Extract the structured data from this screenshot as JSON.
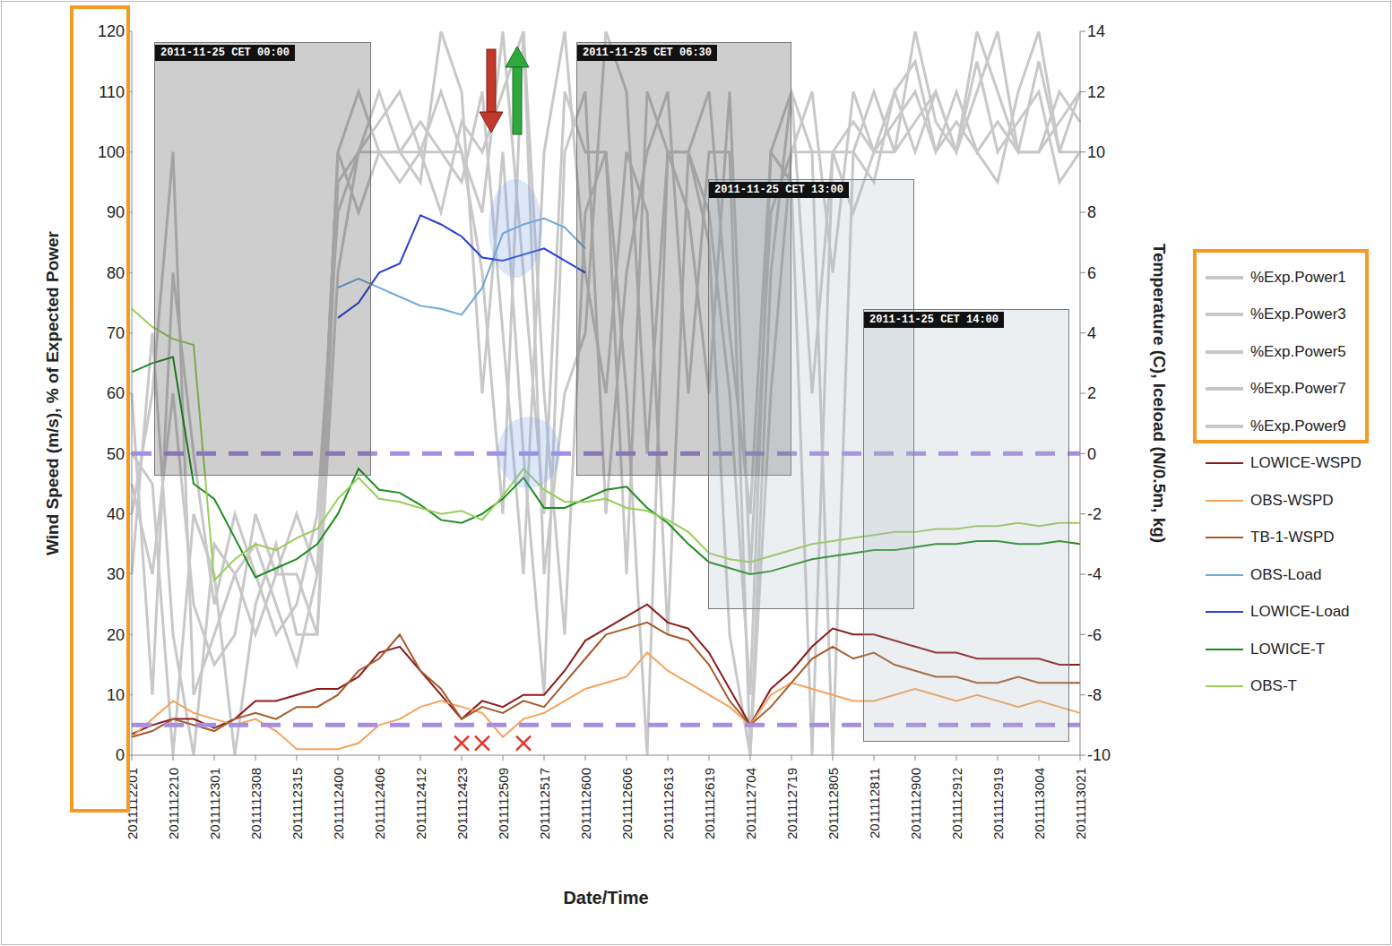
{
  "chart_data": {
    "type": "line",
    "x_label": "Date/Time",
    "y_label": "Wind Speed (m/s), % of Expected Power",
    "y2_label": "Temperature (C), Iceload (N/0.5m, kg)",
    "categories": [
      "2011112201",
      null,
      "2011112210",
      null,
      "2011112301",
      null,
      "2011112308",
      null,
      "2011112315",
      null,
      "2011112400",
      null,
      "2011112406",
      null,
      "2011112412",
      null,
      "2011112423",
      null,
      "2011112509",
      null,
      "2011112517",
      null,
      "2011112600",
      null,
      "2011112606",
      null,
      "2011112613",
      null,
      "2011112619",
      null,
      "2011112704",
      null,
      "2011112719",
      null,
      "2011112805",
      null,
      "2011112811",
      null,
      "2011112900",
      null,
      "2011112912",
      null,
      "2011112919",
      null,
      "2011113004",
      null,
      "2011113021"
    ],
    "ylim": [
      0,
      120
    ],
    "yticks": [
      0,
      10,
      20,
      30,
      40,
      50,
      60,
      70,
      80,
      90,
      100,
      110,
      120
    ],
    "y2lim": [
      -10,
      14
    ],
    "y2ticks": [
      -10,
      -8,
      -6,
      -4,
      -2,
      0,
      2,
      4,
      6,
      8,
      10,
      12,
      14
    ],
    "grid": false,
    "legend": "right",
    "series": [
      {
        "name": "%Exp.Power1",
        "color": "#c8c8c8",
        "values": [
          50,
          45,
          0,
          40,
          30,
          0,
          25,
          35,
          20,
          20,
          80,
          100,
          100,
          95,
          100,
          110,
          100,
          80,
          40,
          120,
          60,
          20,
          90,
          100,
          60,
          0,
          100,
          100,
          85,
          20,
          0,
          60,
          100,
          100,
          0,
          100,
          110,
          100,
          120,
          105,
          100,
          110,
          120,
          100,
          100,
          110,
          105
        ]
      },
      {
        "name": "%Exp.Power3",
        "color": "#c8c8c8",
        "values": [
          40,
          60,
          100,
          10,
          20,
          30,
          35,
          25,
          15,
          30,
          100,
          90,
          100,
          100,
          105,
          100,
          95,
          110,
          70,
          30,
          100,
          120,
          80,
          60,
          100,
          90,
          20,
          100,
          110,
          70,
          40,
          100,
          95,
          0,
          100,
          105,
          100,
          110,
          115,
          100,
          105,
          100,
          95,
          110,
          120,
          100,
          110
        ]
      },
      {
        "name": "%Exp.Power5",
        "color": "#c8c8c8",
        "values": [
          60,
          10,
          80,
          50,
          25,
          40,
          30,
          20,
          25,
          40,
          90,
          100,
          110,
          100,
          95,
          120,
          110,
          60,
          100,
          50,
          10,
          100,
          110,
          40,
          80,
          100,
          110,
          60,
          100,
          100,
          0,
          80,
          110,
          60,
          100,
          100,
          95,
          110,
          100,
          110,
          100,
          115,
          100,
          105,
          110,
          95,
          100
        ]
      },
      {
        "name": "%Exp.Power7",
        "color": "#c8c8c8",
        "values": [
          30,
          70,
          20,
          0,
          35,
          30,
          20,
          30,
          40,
          30,
          100,
          110,
          100,
          100,
          100,
          90,
          105,
          100,
          110,
          120,
          30,
          60,
          70,
          120,
          110,
          50,
          100,
          90,
          60,
          110,
          30,
          90,
          100,
          110,
          80,
          110,
          100,
          100,
          105,
          110,
          100,
          120,
          110,
          100,
          100,
          105,
          110
        ]
      },
      {
        "name": "%Exp.Power9",
        "color": "#c8c8c8",
        "values": [
          45,
          30,
          60,
          25,
          15,
          20,
          40,
          30,
          30,
          20,
          95,
          100,
          105,
          110,
          100,
          100,
          100,
          90,
          120,
          80,
          40,
          110,
          100,
          100,
          30,
          110,
          100,
          100,
          90,
          60,
          10,
          100,
          110,
          100,
          100,
          90,
          100,
          105,
          110,
          100,
          110,
          100,
          105,
          100,
          115,
          100,
          100
        ]
      },
      {
        "name": "LOWICE-WSPD",
        "color": "#8b1a1a",
        "values": [
          3.5,
          5,
          6,
          6,
          4.5,
          6,
          9,
          9,
          10,
          11,
          11,
          13,
          17,
          18,
          14,
          10,
          6,
          9,
          8,
          10,
          10,
          14,
          19,
          21,
          23,
          25,
          22,
          21,
          17,
          11,
          5,
          11,
          14,
          18,
          21,
          20,
          20,
          19,
          18,
          17,
          17,
          16,
          16,
          16,
          16,
          15,
          15
        ]
      },
      {
        "name": "OBS-WSPD",
        "color": "#f5a35c",
        "values": [
          3,
          6,
          9,
          7,
          6,
          5,
          6,
          4,
          1,
          1,
          1,
          2,
          5,
          6,
          8,
          9,
          8,
          7,
          3,
          6,
          7,
          9,
          11,
          12,
          13,
          17,
          14,
          12,
          10,
          8,
          5,
          10,
          12,
          11,
          10,
          9,
          9,
          10,
          11,
          10,
          9,
          10,
          9,
          8,
          9,
          8,
          7
        ]
      },
      {
        "name": "TB-1-WSPD",
        "color": "#a65a2a",
        "values": [
          3,
          4,
          6,
          5,
          4,
          6,
          7,
          6,
          8,
          8,
          10,
          14,
          16,
          20,
          14,
          11,
          6,
          8,
          7,
          9,
          8,
          12,
          16,
          20,
          21,
          22,
          20,
          19,
          15,
          9,
          5,
          8,
          12,
          16,
          18,
          16,
          17,
          15,
          14,
          13,
          13,
          12,
          12,
          13,
          12,
          12,
          12
        ]
      },
      {
        "name": "OBS-Load",
        "color": "#6fa8dc",
        "axis": "y2",
        "values": [
          null,
          null,
          null,
          null,
          null,
          null,
          null,
          null,
          null,
          null,
          5.5,
          5.8,
          5.5,
          5.2,
          4.9,
          4.8,
          4.6,
          5.5,
          7.3,
          7.6,
          7.8,
          7.5,
          6.8,
          null,
          null,
          null,
          null,
          null,
          null,
          null,
          null,
          null,
          null,
          null,
          null,
          null,
          null,
          null,
          null,
          null,
          null,
          null,
          null,
          null,
          null,
          null,
          null
        ]
      },
      {
        "name": "LOWICE-Load",
        "color": "#2b3fd6",
        "axis": "y2",
        "values": [
          null,
          null,
          null,
          null,
          null,
          null,
          null,
          null,
          null,
          null,
          4.5,
          5.0,
          6.0,
          6.3,
          7.9,
          7.6,
          7.2,
          6.5,
          6.4,
          6.6,
          6.8,
          6.4,
          6.0,
          null,
          null,
          null,
          null,
          null,
          null,
          null,
          null,
          null,
          null,
          null,
          null,
          null,
          null,
          null,
          null,
          null,
          null,
          null,
          null,
          null,
          null,
          null,
          null
        ]
      },
      {
        "name": "LOWICE-T",
        "color": "#1e8c1e",
        "axis": "y2",
        "values": [
          2.7,
          3.0,
          3.2,
          -1.0,
          -1.5,
          -2.8,
          -4.1,
          -3.8,
          -3.5,
          -3.0,
          -2.0,
          -0.5,
          -1.2,
          -1.3,
          -1.7,
          -2.2,
          -2.3,
          -2.0,
          -1.5,
          -0.8,
          -1.8,
          -1.8,
          -1.5,
          -1.2,
          -1.1,
          -1.8,
          -2.3,
          -3.0,
          -3.6,
          -3.8,
          -4.0,
          -3.9,
          -3.7,
          -3.5,
          -3.4,
          -3.3,
          -3.2,
          -3.2,
          -3.1,
          -3.0,
          -3.0,
          -2.9,
          -2.9,
          -3.0,
          -3.0,
          -2.9,
          -3.0
        ]
      },
      {
        "name": "OBS-T",
        "color": "#9acd5a",
        "axis": "y2",
        "values": [
          4.8,
          4.2,
          3.8,
          3.6,
          -4.2,
          -3.5,
          -3.0,
          -3.2,
          -2.8,
          -2.5,
          -1.5,
          -0.8,
          -1.5,
          -1.6,
          -1.8,
          -2.0,
          -1.9,
          -2.2,
          -1.4,
          -0.5,
          -1.2,
          -1.6,
          -1.6,
          -1.5,
          -1.8,
          -1.9,
          -2.2,
          -2.6,
          -3.3,
          -3.5,
          -3.6,
          -3.4,
          -3.2,
          -3.0,
          -2.9,
          -2.8,
          -2.7,
          -2.6,
          -2.6,
          -2.5,
          -2.5,
          -2.4,
          -2.4,
          -2.3,
          -2.4,
          -2.3,
          -2.3
        ]
      }
    ],
    "reference_lines": [
      {
        "value": 50,
        "color": "#a88ee0",
        "line_style": "dashed"
      },
      {
        "value": 5,
        "color": "#a88ee0",
        "line_style": "dashed"
      }
    ],
    "markers": {
      "color": "#e8322a",
      "marker": "x",
      "values": [
        null,
        null,
        null,
        null,
        null,
        null,
        null,
        null,
        null,
        null,
        null,
        null,
        null,
        null,
        null,
        null,
        2,
        2,
        null,
        2,
        null,
        null,
        null,
        null,
        null,
        null,
        null,
        null,
        null,
        null,
        null,
        null,
        null,
        null,
        null,
        null,
        null,
        null,
        null,
        null,
        null,
        null,
        null,
        null,
        null,
        null,
        null
      ]
    },
    "annotations": [
      {
        "text": "2011-11-25 CET 00:00"
      },
      {
        "text": "2011-11-25 CET 06:30"
      },
      {
        "text": "2011-11-25 CET 13:00"
      },
      {
        "text": "2011-11-25 CET 14:00"
      }
    ]
  }
}
